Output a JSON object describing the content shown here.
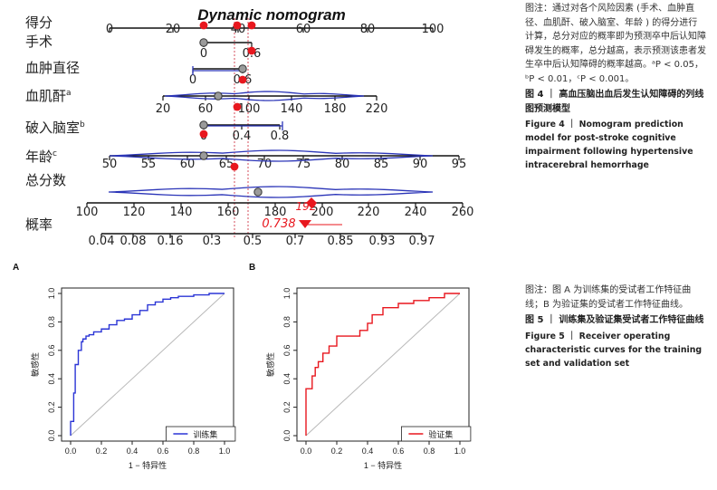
{
  "nomogram": {
    "title": "Dynamic nomogram",
    "rows": [
      {
        "label": "得分",
        "sup": "",
        "ticks": [
          "0",
          "20",
          "40",
          "60",
          "80",
          "100"
        ]
      },
      {
        "label": "手术",
        "sup": "",
        "ticks": [
          "0",
          "0.6"
        ]
      },
      {
        "label": "血肿直径",
        "sup": "",
        "ticks": [
          "0",
          "0.6"
        ]
      },
      {
        "label": "血肌酐",
        "sup": "a",
        "ticks": [
          "20",
          "60",
          "100",
          "140",
          "180",
          "220"
        ]
      },
      {
        "label": "破入脑室",
        "sup": "b",
        "ticks": [
          "0",
          "0.4",
          "0.8"
        ]
      },
      {
        "label": "年龄",
        "sup": "c",
        "ticks": [
          "50",
          "55",
          "60",
          "65",
          "70",
          "75",
          "80",
          "85",
          "90",
          "95"
        ]
      },
      {
        "label": "总分数",
        "sup": "",
        "ticks": [
          "100",
          "120",
          "140",
          "160",
          "180",
          "200",
          "220",
          "240",
          "260"
        ]
      },
      {
        "label": "概率",
        "sup": "",
        "ticks": [
          "0.04",
          "0.08",
          "0.16",
          "0.3",
          "0.5",
          "0.7",
          "0.85",
          "0.93",
          "0.97"
        ]
      }
    ],
    "total_label": "192",
    "prob_label": "0.738",
    "colors": {
      "marker": "#e8171e",
      "density": "#2b35b8",
      "axis": "#111111"
    }
  },
  "captions": {
    "fig4": {
      "note": "图注：通过对各个风险因素 (手术、血肿直径、血肌酐、破入脑室、年龄 ) 的得分进行计算，总分对应的概率即为预测卒中后认知障碍发生的概率，总分越高，表示预测该患者发生卒中后认知障碍的概率越高。",
      "pvals": "ᵃP < 0.05，ᵇP < 0.01，ᶜP < 0.001。",
      "zh_title": "图 4 ｜ 高血压脑出血后发生认知障碍的列线图预测模型",
      "en_title": "Figure 4 ｜ Nomogram prediction model for post-stroke cognitive impairment following hypertensive intracerebral hemorrhage"
    },
    "fig5": {
      "note": "图注：图 A 为训练集的受试者工作特征曲线；B 为验证集的受试者工作特征曲线。",
      "zh_title": "图 5 ｜ 训练集及验证集受试者工作特征曲线",
      "en_title": "Figure 5 ｜ Receiver operating characteristic curves for the training set and validation set"
    }
  },
  "chart_data": [
    {
      "type": "line",
      "panel": "A",
      "xlabel": "1 − 特异性",
      "ylabel": "敏感性",
      "xlim": [
        0,
        1
      ],
      "ylim": [
        0,
        1
      ],
      "ticks": [
        "0.0",
        "0.2",
        "0.4",
        "0.6",
        "0.8",
        "1.0"
      ],
      "series": [
        {
          "name": "训练集",
          "color": "#2b35d6",
          "x": [
            0,
            0,
            0.02,
            0.02,
            0.03,
            0.03,
            0.05,
            0.05,
            0.07,
            0.07,
            0.08,
            0.08,
            0.1,
            0.1,
            0.12,
            0.12,
            0.15,
            0.15,
            0.2,
            0.2,
            0.25,
            0.25,
            0.3,
            0.3,
            0.35,
            0.35,
            0.4,
            0.4,
            0.45,
            0.45,
            0.5,
            0.5,
            0.55,
            0.55,
            0.6,
            0.6,
            0.65,
            0.65,
            0.7,
            0.7,
            0.8,
            0.8,
            0.9,
            0.9,
            1.0
          ],
          "y": [
            0,
            0.1,
            0.1,
            0.3,
            0.3,
            0.5,
            0.5,
            0.6,
            0.6,
            0.66,
            0.66,
            0.68,
            0.68,
            0.7,
            0.7,
            0.71,
            0.71,
            0.73,
            0.73,
            0.75,
            0.75,
            0.78,
            0.78,
            0.81,
            0.81,
            0.82,
            0.82,
            0.85,
            0.85,
            0.88,
            0.88,
            0.92,
            0.92,
            0.94,
            0.94,
            0.96,
            0.96,
            0.97,
            0.97,
            0.98,
            0.98,
            0.99,
            0.99,
            1.0,
            1.0
          ]
        }
      ],
      "reference_line": true,
      "legend": "bottom-right"
    },
    {
      "type": "line",
      "panel": "B",
      "xlabel": "1 − 特异性",
      "ylabel": "敏感性",
      "xlim": [
        0,
        1
      ],
      "ylim": [
        0,
        1
      ],
      "ticks": [
        "0.0",
        "0.2",
        "0.4",
        "0.6",
        "0.8",
        "1.0"
      ],
      "series": [
        {
          "name": "验证集",
          "color": "#e8171e",
          "x": [
            0,
            0,
            0.04,
            0.04,
            0.06,
            0.06,
            0.08,
            0.08,
            0.11,
            0.11,
            0.15,
            0.15,
            0.2,
            0.2,
            0.35,
            0.35,
            0.4,
            0.4,
            0.43,
            0.43,
            0.5,
            0.5,
            0.6,
            0.6,
            0.7,
            0.7,
            0.8,
            0.8,
            0.9,
            0.9,
            1.0
          ],
          "y": [
            0,
            0.33,
            0.33,
            0.42,
            0.42,
            0.48,
            0.48,
            0.52,
            0.52,
            0.58,
            0.58,
            0.63,
            0.63,
            0.7,
            0.7,
            0.74,
            0.74,
            0.79,
            0.79,
            0.85,
            0.85,
            0.9,
            0.9,
            0.93,
            0.93,
            0.95,
            0.95,
            0.97,
            0.97,
            1.0,
            1.0
          ]
        }
      ],
      "reference_line": true,
      "legend": "bottom-right"
    }
  ]
}
